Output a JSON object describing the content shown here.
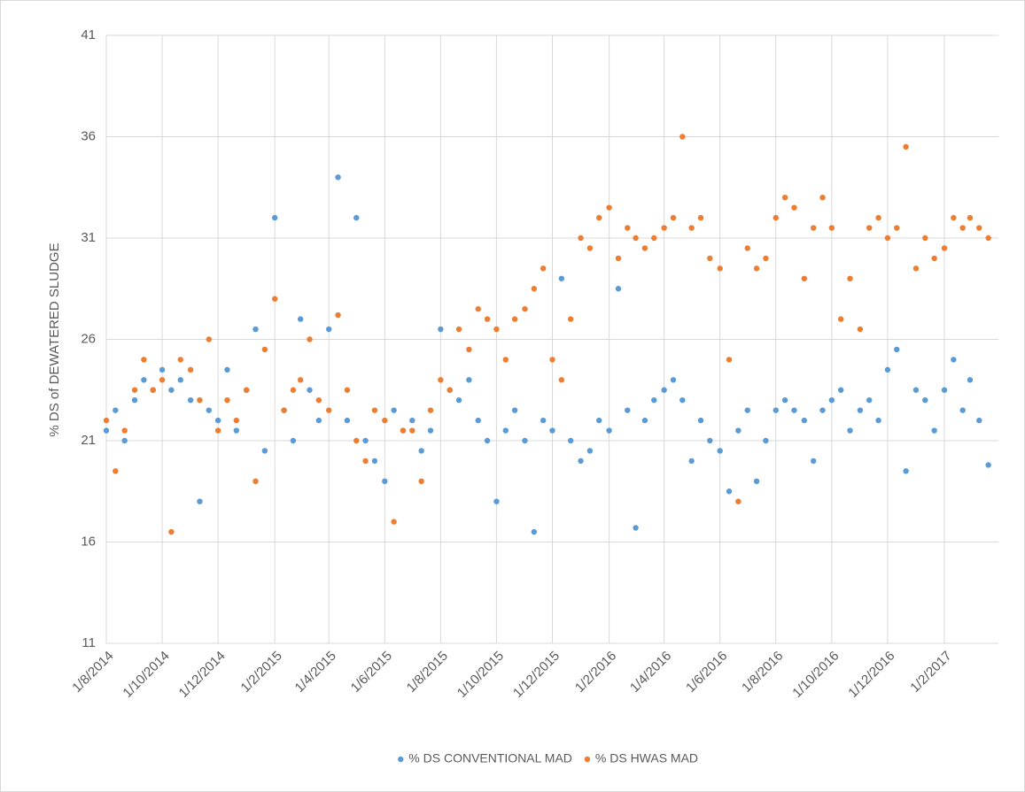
{
  "chart_data": {
    "type": "scatter",
    "y_label": "% DS of DEWATERED  SLUDGE",
    "x": [
      "1/8/2014",
      "11/8/2014",
      "21/8/2014",
      "1/9/2014",
      "11/9/2014",
      "21/9/2014",
      "1/10/2014",
      "11/10/2014",
      "21/10/2014",
      "1/11/2014",
      "11/11/2014",
      "21/11/2014",
      "1/12/2014",
      "11/12/2014",
      "21/12/2014",
      "1/1/2015",
      "11/1/2015",
      "21/1/2015",
      "1/2/2015",
      "11/2/2015",
      "21/2/2015",
      "1/3/2015",
      "11/3/2015",
      "21/3/2015",
      "1/4/2015",
      "11/4/2015",
      "21/4/2015",
      "1/5/2015",
      "11/5/2015",
      "21/5/2015",
      "1/6/2015",
      "11/6/2015",
      "21/6/2015",
      "1/7/2015",
      "11/7/2015",
      "21/7/2015",
      "1/8/2015",
      "11/8/2015",
      "21/8/2015",
      "1/9/2015",
      "11/9/2015",
      "21/9/2015",
      "1/10/2015",
      "11/10/2015",
      "21/10/2015",
      "1/11/2015",
      "11/11/2015",
      "21/11/2015",
      "1/12/2015",
      "11/12/2015",
      "21/12/2015",
      "1/1/2016",
      "11/1/2016",
      "21/1/2016",
      "1/2/2016",
      "11/2/2016",
      "21/2/2016",
      "1/3/2016",
      "11/3/2016",
      "21/3/2016",
      "1/4/2016",
      "11/4/2016",
      "21/4/2016",
      "1/5/2016",
      "11/5/2016",
      "21/5/2016",
      "1/6/2016",
      "11/6/2016",
      "21/6/2016",
      "1/7/2016",
      "11/7/2016",
      "21/7/2016",
      "1/8/2016",
      "11/8/2016",
      "21/8/2016",
      "1/9/2016",
      "11/9/2016",
      "21/9/2016",
      "1/10/2016",
      "11/10/2016",
      "21/10/2016",
      "1/11/2016",
      "11/11/2016",
      "21/11/2016",
      "1/12/2016",
      "11/12/2016",
      "21/12/2016",
      "1/1/2017",
      "11/1/2017",
      "21/1/2017",
      "1/2/2017",
      "11/2/2017",
      "21/2/2017",
      "1/3/2017",
      "11/3/2017",
      "21/3/2017"
    ],
    "series": [
      {
        "name": "% DS CONVENTIONAL MAD",
        "color": "#5b9bd5",
        "values": [
          21.5,
          22.5,
          21,
          23,
          24,
          23.5,
          24.5,
          23.5,
          24,
          23,
          18,
          22.5,
          22,
          24.5,
          21.5,
          23.5,
          26.5,
          20.5,
          32,
          22.5,
          21,
          27,
          23.5,
          22,
          26.5,
          34,
          22,
          32,
          21,
          20,
          19,
          22.5,
          21.5,
          22,
          20.5,
          21.5,
          26.5,
          23.5,
          23,
          24,
          22,
          21,
          18,
          21.5,
          22.5,
          21,
          16.5,
          22,
          21.5,
          29,
          21,
          20,
          20.5,
          22,
          21.5,
          28.5,
          22.5,
          16.7,
          22,
          23,
          23.5,
          24,
          23,
          20,
          22,
          21,
          20.5,
          18.5,
          21.5,
          22.5,
          19,
          21,
          22.5,
          23,
          22.5,
          22,
          20,
          22.5,
          23,
          23.5,
          21.5,
          22.5,
          23,
          22,
          24.5,
          25.5,
          19.5,
          23.5,
          23,
          21.5,
          23.5,
          25,
          22.5,
          24,
          22,
          19.8
        ]
      },
      {
        "name": "% DS HWAS MAD",
        "color": "#ed7d31",
        "values": [
          22,
          19.5,
          21.5,
          23.5,
          25,
          23.5,
          24,
          16.5,
          25,
          24.5,
          23,
          26,
          21.5,
          23,
          22,
          23.5,
          19,
          25.5,
          28,
          22.5,
          23.5,
          24,
          26,
          23,
          22.5,
          27.2,
          23.5,
          21,
          20,
          22.5,
          22,
          17,
          21.5,
          21.5,
          19,
          22.5,
          24,
          23.5,
          26.5,
          25.5,
          27.5,
          27,
          26.5,
          25,
          27,
          27.5,
          28.5,
          29.5,
          25,
          24,
          27,
          31,
          30.5,
          32,
          32.5,
          30,
          31.5,
          31,
          30.5,
          31,
          31.5,
          32,
          36,
          31.5,
          32,
          30,
          29.5,
          25,
          18,
          30.5,
          29.5,
          30,
          32,
          33,
          32.5,
          29,
          31.5,
          33,
          31.5,
          27,
          29,
          26.5,
          31.5,
          32,
          31,
          31.5,
          35.5,
          29.5,
          31,
          30,
          30.5,
          32,
          31.5,
          32,
          31.5,
          31
        ]
      }
    ],
    "xlim": [
      "1/8/2014",
      "1/4/2017"
    ],
    "xticks": [
      "1/8/2014",
      "1/10/2014",
      "1/12/2014",
      "1/2/2015",
      "1/4/2015",
      "1/6/2015",
      "1/8/2015",
      "1/10/2015",
      "1/12/2015",
      "1/2/2016",
      "1/4/2016",
      "1/6/2016",
      "1/8/2016",
      "1/10/2016",
      "1/12/2016",
      "1/2/2017"
    ],
    "ylim": [
      11,
      41
    ],
    "yticks": [
      11,
      16,
      21,
      26,
      31,
      36,
      41
    ],
    "grid": true,
    "legend": "bottom"
  }
}
